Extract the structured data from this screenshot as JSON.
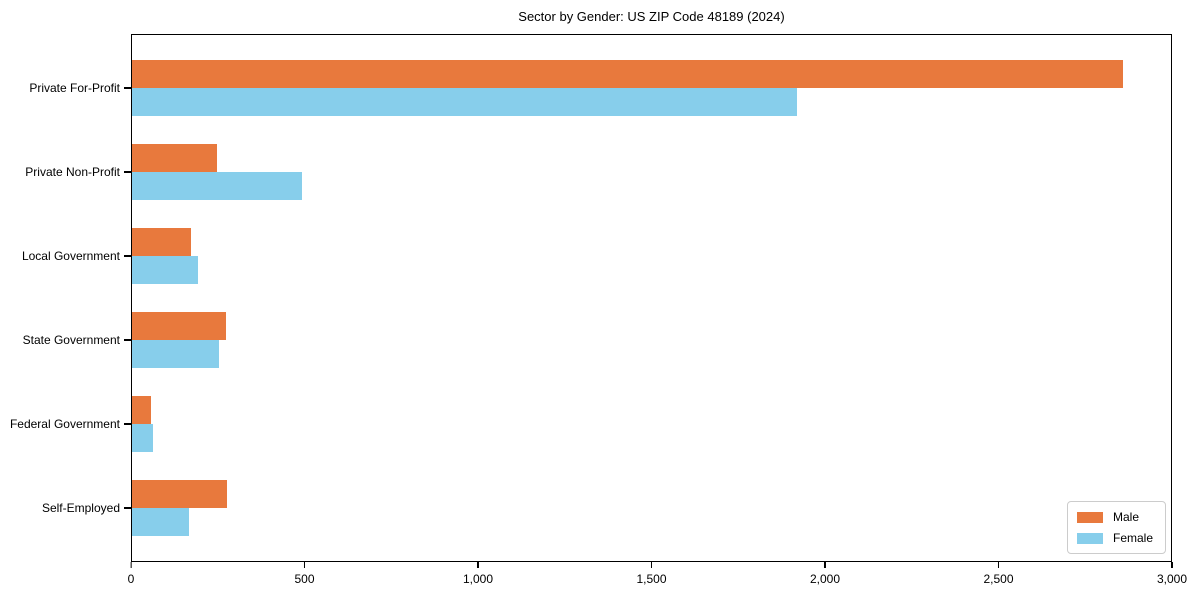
{
  "chart_data": {
    "type": "bar",
    "orientation": "horizontal",
    "title": "Sector by Gender: US ZIP Code 48189 (2024)",
    "categories": [
      "Private For-Profit",
      "Private Non-Profit",
      "Local Government",
      "State Government",
      "Federal Government",
      "Self-Employed"
    ],
    "series": [
      {
        "name": "Male",
        "color": "#e8793d",
        "values": [
          2860,
          245,
          170,
          270,
          55,
          275
        ]
      },
      {
        "name": "Female",
        "color": "#87ceeb",
        "values": [
          1920,
          490,
          190,
          250,
          60,
          165
        ]
      }
    ],
    "xlabel": "",
    "ylabel": "",
    "xlim": [
      0,
      3000
    ],
    "xticks": [
      0,
      500,
      1000,
      1500,
      2000,
      2500,
      3000
    ],
    "xtick_labels": [
      "0",
      "500",
      "1,000",
      "1,500",
      "2,000",
      "2,500",
      "3,000"
    ],
    "grid": false,
    "legend_position": "lower right",
    "colors": {
      "axis": "#000000",
      "legend_border": "#cccccc",
      "background": "#ffffff"
    }
  }
}
